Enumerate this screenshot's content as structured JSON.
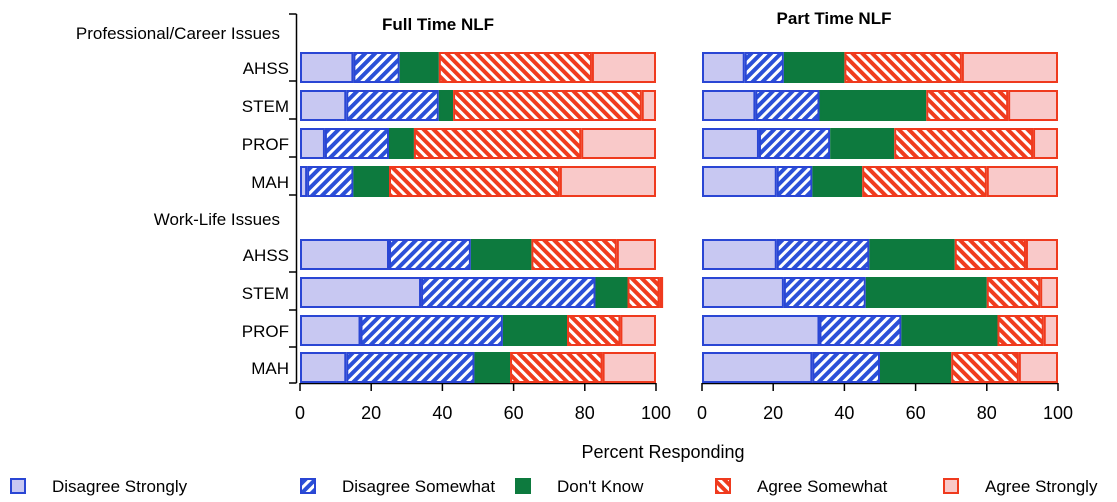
{
  "chart_data": {
    "type": "bar",
    "stacked": true,
    "orientation": "horizontal",
    "xlabel": "Percent Responding",
    "xlim": [
      0,
      100
    ],
    "xticks": [
      0,
      20,
      40,
      60,
      80,
      100
    ],
    "legend_position": "bottom",
    "series_names": [
      "Disagree Strongly",
      "Disagree Somewhat",
      "Don't Know",
      "Agree Somewhat",
      "Agree Strongly"
    ],
    "colors": {
      "disagree_strongly": "#c8c8f2",
      "disagree_somewhat": "#2b50d8",
      "dont_know": "#0d7a3e",
      "agree_somewhat": "#f03c1e",
      "agree_strongly": "#f9c9c9",
      "border_blue": "#2a46d4",
      "border_red": "#ef3a1e"
    },
    "groups": [
      {
        "label": "Professional/Career Issues",
        "categories": [
          "AHSS",
          "STEM",
          "PROF",
          "MAH"
        ]
      },
      {
        "label": "Work-Life Issues",
        "categories": [
          "AHSS",
          "STEM",
          "PROF",
          "MAH"
        ]
      }
    ],
    "panels": [
      {
        "title": "Full Time NLF",
        "rows": [
          [
            15,
            13,
            11,
            43,
            18
          ],
          [
            13,
            26,
            4,
            53,
            4
          ],
          [
            7,
            18,
            7,
            47,
            21
          ],
          [
            2,
            13,
            10,
            48,
            27
          ],
          [
            25,
            23,
            17,
            24,
            11
          ],
          [
            34,
            49,
            9,
            9,
            1
          ],
          [
            17,
            40,
            18,
            15,
            10
          ],
          [
            13,
            36,
            10,
            26,
            15
          ]
        ]
      },
      {
        "title": "Part Time NLF",
        "rows": [
          [
            12,
            11,
            17,
            33,
            27
          ],
          [
            15,
            18,
            30,
            23,
            14
          ],
          [
            16,
            20,
            18,
            39,
            7
          ],
          [
            21,
            10,
            14,
            35,
            20
          ],
          [
            21,
            26,
            24,
            20,
            9
          ],
          [
            23,
            23,
            34,
            15,
            5
          ],
          [
            33,
            23,
            27,
            13,
            4
          ],
          [
            31,
            19,
            20,
            19,
            11
          ]
        ]
      }
    ]
  }
}
